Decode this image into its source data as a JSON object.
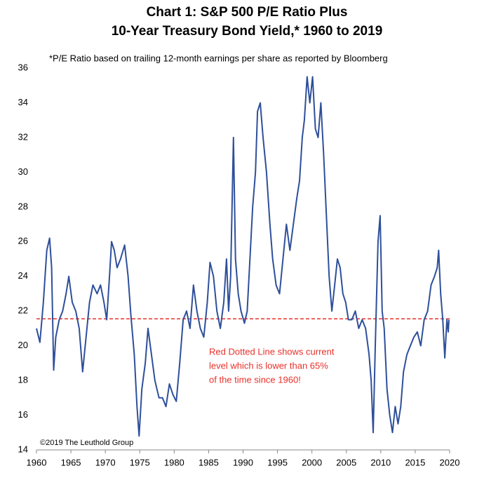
{
  "chart_data": {
    "type": "line",
    "title": [
      "Chart 1: S&P 500 P/E Ratio Plus",
      "10-Year Treasury Bond Yield,* 1960 to 2019"
    ],
    "footnote": "*P/E Ratio based on trailing 12-month earnings per share as reported by Bloomberg",
    "annotation": [
      "Red Dotted Line shows current",
      "level which is lower than 65%",
      "of the time since 1960!"
    ],
    "source": "©2019 The Leuthold Group",
    "xlim": [
      1960,
      2020
    ],
    "xticks": [
      1960,
      1965,
      1970,
      1975,
      1980,
      1985,
      1990,
      1995,
      2000,
      2005,
      2010,
      2015,
      2020
    ],
    "ylim": [
      14,
      36
    ],
    "yticks": [
      14,
      16,
      18,
      20,
      22,
      24,
      26,
      28,
      30,
      32,
      34,
      36
    ],
    "reference_line": {
      "value": 21.55,
      "color": "#e8302a"
    },
    "series": [
      {
        "color": "#2e4f9a",
        "x": [
          1960,
          1960.5,
          1961,
          1961.5,
          1961.9,
          1962.2,
          1962.5,
          1962.8,
          1963.3,
          1963.8,
          1964.3,
          1964.7,
          1965.2,
          1965.7,
          1966.2,
          1966.7,
          1967.2,
          1967.7,
          1968.2,
          1968.8,
          1969.3,
          1969.8,
          1970.2,
          1970.6,
          1970.9,
          1971.3,
          1971.7,
          1972.2,
          1972.8,
          1973.3,
          1973.7,
          1974.2,
          1974.6,
          1974.9,
          1975.3,
          1975.8,
          1976.2,
          1976.7,
          1977.2,
          1977.8,
          1978.3,
          1978.8,
          1979.3,
          1979.8,
          1980.3,
          1980.8,
          1981.3,
          1981.8,
          1982.3,
          1982.8,
          1983.3,
          1983.8,
          1984.3,
          1984.8,
          1985.2,
          1985.7,
          1986.2,
          1986.7,
          1987.2,
          1987.6,
          1987.9,
          1988.2,
          1988.6,
          1988.9,
          1989.3,
          1989.7,
          1990.2,
          1990.6,
          1991.0,
          1991.4,
          1991.8,
          1992.1,
          1992.5,
          1992.9,
          1993.4,
          1993.9,
          1994.3,
          1994.8,
          1995.3,
          1995.8,
          1996.3,
          1996.8,
          1997.3,
          1997.8,
          1998.2,
          1998.6,
          1998.9,
          1999.3,
          1999.7,
          2000.1,
          2000.5,
          2000.9,
          2001.3,
          2001.7,
          2002.1,
          2002.5,
          2002.9,
          2003.3,
          2003.7,
          2004.1,
          2004.5,
          2004.9,
          2005.3,
          2005.8,
          2006.3,
          2006.8,
          2007.3,
          2007.8,
          2008.3,
          2008.6,
          2008.9,
          2009.2,
          2009.6,
          2009.9,
          2010.2,
          2010.5,
          2010.9,
          2011.3,
          2011.7,
          2012.1,
          2012.5,
          2012.9,
          2013.3,
          2013.8,
          2014.3,
          2014.8,
          2015.3,
          2015.8,
          2016.3,
          2016.8,
          2017.3,
          2017.8,
          2018.2,
          2018.4,
          2018.7,
          2019.0,
          2019.3,
          2019.6,
          2019.8,
          2019.9
        ],
        "values": [
          21.0,
          20.2,
          22.5,
          25.5,
          26.2,
          24.5,
          18.6,
          20.5,
          21.5,
          22.0,
          23.0,
          24.0,
          22.5,
          22.0,
          21.0,
          18.5,
          20.5,
          22.5,
          23.5,
          23.0,
          23.5,
          22.5,
          21.5,
          24.0,
          26.0,
          25.5,
          24.5,
          25.0,
          25.8,
          24.0,
          21.8,
          19.5,
          16.5,
          14.8,
          17.5,
          19.0,
          21.0,
          19.5,
          18.0,
          17.0,
          17.0,
          16.5,
          17.8,
          17.2,
          16.8,
          19.0,
          21.5,
          22.0,
          21.0,
          23.5,
          22.0,
          21.0,
          20.5,
          22.5,
          24.8,
          24.0,
          22.0,
          21.0,
          22.5,
          25.0,
          22.0,
          24.0,
          32.0,
          25.0,
          23.0,
          22.0,
          21.3,
          22.0,
          25.0,
          28.0,
          30.0,
          33.5,
          34.0,
          32.0,
          30.0,
          27.0,
          25.0,
          23.5,
          23.0,
          25.0,
          27.0,
          25.5,
          27.0,
          28.5,
          29.5,
          32.0,
          33.0,
          35.5,
          34.0,
          35.5,
          32.5,
          32.0,
          34.0,
          31.0,
          27.5,
          24.0,
          22.0,
          23.5,
          25.0,
          24.5,
          23.0,
          22.5,
          21.5,
          21.5,
          22.0,
          21.0,
          21.5,
          21.0,
          19.5,
          18.0,
          15.0,
          20.0,
          26.0,
          27.5,
          22.0,
          21.0,
          17.5,
          16.0,
          15.0,
          16.5,
          15.5,
          16.5,
          18.5,
          19.5,
          20.0,
          20.5,
          20.8,
          20.0,
          21.5,
          22.0,
          23.5,
          24.0,
          24.5,
          25.5,
          23.0,
          21.5,
          19.3,
          21.5,
          20.8,
          21.5
        ]
      }
    ]
  }
}
